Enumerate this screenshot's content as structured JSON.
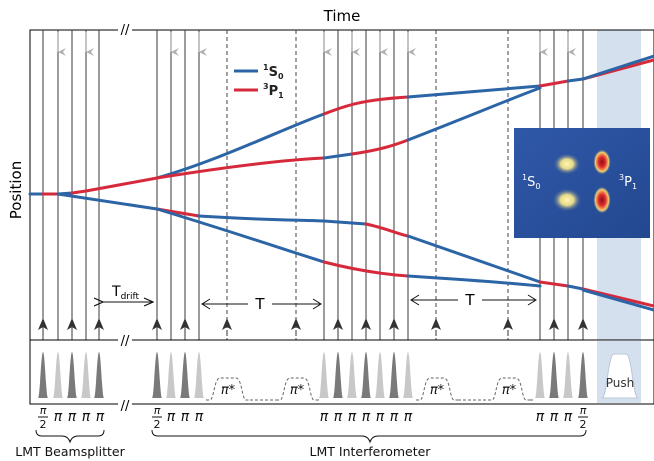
{
  "axes": {
    "time_label": "Time",
    "position_label": "Position",
    "break_mark": "//"
  },
  "legend": [
    {
      "state": "1S0",
      "text_sup": "1",
      "text_main": "S",
      "text_sub": "0",
      "color": "#2c65a6"
    },
    {
      "state": "3P1",
      "text_sup": "3",
      "text_main": "P",
      "text_sub": "1",
      "color": "#d62a3c"
    }
  ],
  "inset": {
    "left_label": {
      "sup": "1",
      "main": "S",
      "sub": "0"
    },
    "right_label": {
      "sup": "3",
      "main": "P",
      "sub": "1"
    }
  },
  "intervals": {
    "t_drift_main": "T",
    "t_drift_sub": "drift",
    "t1": "T",
    "t2": "T"
  },
  "pulse_labels": {
    "half_pi_num": "π",
    "half_pi_den": "2",
    "pi": "π",
    "pi_star": "π*",
    "push": "Push"
  },
  "sequences": {
    "beamsplitter": "LMT Beamsplitter",
    "interferometer": "LMT Interferometer"
  },
  "colors": {
    "ground": "#2c65a6",
    "excited": "#d62a3c",
    "push_band": "#d5e0ee",
    "inset_bg": "#2a4f9c"
  }
}
